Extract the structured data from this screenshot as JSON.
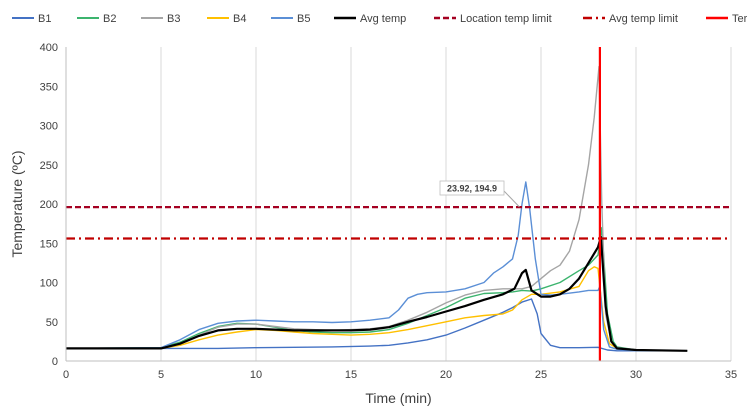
{
  "chart_data": {
    "type": "line",
    "xlabel": "Time (min)",
    "ylabel": "Temperature (ºC)",
    "xlim": [
      0,
      35
    ],
    "ylim": [
      0,
      400
    ],
    "xticks": [
      0,
      5,
      10,
      15,
      20,
      25,
      30,
      35
    ],
    "yticks": [
      0,
      50,
      100,
      150,
      200,
      250,
      300,
      350,
      400
    ],
    "grid": "vertical",
    "legend_position": "top",
    "series": [
      {
        "name": "B1",
        "color": "#4472c4",
        "style": "solid",
        "points": [
          [
            0,
            16
          ],
          [
            5,
            16
          ],
          [
            6,
            16
          ],
          [
            8,
            16
          ],
          [
            10,
            17
          ],
          [
            12,
            17.5
          ],
          [
            14,
            18
          ],
          [
            16,
            19
          ],
          [
            17,
            20
          ],
          [
            18,
            23
          ],
          [
            19,
            27
          ],
          [
            20,
            33
          ],
          [
            21,
            42
          ],
          [
            22,
            52
          ],
          [
            23,
            62
          ],
          [
            23.5,
            68
          ],
          [
            24,
            75
          ],
          [
            24.5,
            79
          ],
          [
            24.8,
            60
          ],
          [
            25,
            35
          ],
          [
            25.5,
            20
          ],
          [
            26,
            17
          ],
          [
            27,
            17
          ],
          [
            28,
            17.5
          ],
          [
            28.5,
            14
          ],
          [
            29,
            13
          ],
          [
            30,
            13
          ],
          [
            31,
            13
          ],
          [
            32.7,
            13
          ]
        ]
      },
      {
        "name": "B2",
        "color": "#3cb46e",
        "style": "solid",
        "points": [
          [
            0,
            16
          ],
          [
            5,
            17
          ],
          [
            6,
            24
          ],
          [
            7,
            35
          ],
          [
            8,
            44
          ],
          [
            9,
            48
          ],
          [
            10,
            47
          ],
          [
            11,
            43
          ],
          [
            12,
            39
          ],
          [
            13,
            37
          ],
          [
            14,
            36
          ],
          [
            15,
            36
          ],
          [
            16,
            37
          ],
          [
            17,
            40
          ],
          [
            18,
            48
          ],
          [
            19,
            58
          ],
          [
            20,
            68
          ],
          [
            21,
            80
          ],
          [
            22,
            86
          ],
          [
            23,
            87
          ],
          [
            23.5,
            88
          ],
          [
            24,
            90
          ],
          [
            24.5,
            89
          ],
          [
            25,
            92
          ],
          [
            26,
            100
          ],
          [
            27,
            115
          ],
          [
            27.5,
            122
          ],
          [
            28,
            135
          ],
          [
            28.2,
            170
          ],
          [
            28.5,
            60
          ],
          [
            28.8,
            25
          ],
          [
            29,
            18
          ],
          [
            30,
            14
          ],
          [
            31,
            13
          ],
          [
            32.7,
            13
          ]
        ]
      },
      {
        "name": "B3",
        "color": "#a5a5a5",
        "style": "solid",
        "points": [
          [
            0,
            16
          ],
          [
            5,
            16
          ],
          [
            6,
            22
          ],
          [
            7,
            33
          ],
          [
            8,
            43
          ],
          [
            9,
            47
          ],
          [
            10,
            47
          ],
          [
            11,
            44
          ],
          [
            12,
            41
          ],
          [
            13,
            40
          ],
          [
            14,
            39
          ],
          [
            15,
            40
          ],
          [
            16,
            41
          ],
          [
            17,
            44
          ],
          [
            18,
            52
          ],
          [
            19,
            62
          ],
          [
            20,
            74
          ],
          [
            21,
            84
          ],
          [
            22,
            90
          ],
          [
            23,
            92
          ],
          [
            24,
            92
          ],
          [
            24.5,
            95
          ],
          [
            25,
            105
          ],
          [
            25.5,
            115
          ],
          [
            26,
            122
          ],
          [
            26.5,
            140
          ],
          [
            27,
            180
          ],
          [
            27.5,
            250
          ],
          [
            27.8,
            310
          ],
          [
            28.05,
            375
          ],
          [
            28.2,
            200
          ],
          [
            28.4,
            60
          ],
          [
            28.7,
            25
          ],
          [
            29,
            17
          ],
          [
            30,
            14
          ],
          [
            32.7,
            13
          ]
        ]
      },
      {
        "name": "B4",
        "color": "#ffc000",
        "style": "solid",
        "points": [
          [
            0,
            16
          ],
          [
            5,
            16
          ],
          [
            6,
            20
          ],
          [
            7,
            27
          ],
          [
            8,
            33
          ],
          [
            9,
            37
          ],
          [
            10,
            40
          ],
          [
            11,
            39
          ],
          [
            12,
            37
          ],
          [
            13,
            35
          ],
          [
            14,
            34
          ],
          [
            15,
            33
          ],
          [
            16,
            34
          ],
          [
            17,
            36
          ],
          [
            18,
            40
          ],
          [
            19,
            45
          ],
          [
            20,
            50
          ],
          [
            21,
            55
          ],
          [
            22,
            58
          ],
          [
            23,
            60
          ],
          [
            23.5,
            65
          ],
          [
            24,
            78
          ],
          [
            24.5,
            85
          ],
          [
            25,
            85
          ],
          [
            26,
            88
          ],
          [
            27,
            95
          ],
          [
            27.5,
            115
          ],
          [
            27.8,
            120
          ],
          [
            28,
            118
          ],
          [
            28.3,
            50
          ],
          [
            28.6,
            22
          ],
          [
            29,
            16
          ],
          [
            30,
            14
          ],
          [
            32.7,
            13
          ]
        ]
      },
      {
        "name": "B5",
        "color": "#5b8fd6",
        "style": "solid",
        "points": [
          [
            0,
            16
          ],
          [
            5,
            17
          ],
          [
            6,
            27
          ],
          [
            7,
            40
          ],
          [
            8,
            48
          ],
          [
            9,
            51
          ],
          [
            10,
            52
          ],
          [
            11,
            51
          ],
          [
            12,
            50
          ],
          [
            13,
            50
          ],
          [
            14,
            49
          ],
          [
            15,
            50
          ],
          [
            16,
            52
          ],
          [
            17,
            55
          ],
          [
            17.5,
            65
          ],
          [
            18,
            80
          ],
          [
            18.5,
            85
          ],
          [
            19,
            87
          ],
          [
            20,
            88
          ],
          [
            21,
            92
          ],
          [
            22,
            100
          ],
          [
            22.5,
            112
          ],
          [
            23,
            120
          ],
          [
            23.5,
            130
          ],
          [
            23.8,
            160
          ],
          [
            24,
            200
          ],
          [
            24.2,
            228
          ],
          [
            24.4,
            195
          ],
          [
            24.7,
            130
          ],
          [
            25,
            85
          ],
          [
            25.5,
            84
          ],
          [
            26,
            85
          ],
          [
            27,
            88
          ],
          [
            27.5,
            90
          ],
          [
            28,
            90
          ],
          [
            28.1,
            95
          ],
          [
            28.3,
            40
          ],
          [
            28.6,
            18
          ],
          [
            29,
            15
          ],
          [
            30,
            13
          ],
          [
            32.7,
            13
          ]
        ]
      },
      {
        "name": "Avg temp",
        "color": "#000000",
        "style": "solid",
        "points": [
          [
            0,
            16
          ],
          [
            5,
            16
          ],
          [
            6,
            22
          ],
          [
            7,
            32
          ],
          [
            8,
            39
          ],
          [
            9,
            41
          ],
          [
            10,
            41
          ],
          [
            11,
            40
          ],
          [
            12,
            39
          ],
          [
            13,
            39
          ],
          [
            14,
            39
          ],
          [
            15,
            39
          ],
          [
            16,
            40
          ],
          [
            17,
            43
          ],
          [
            18,
            50
          ],
          [
            19,
            56
          ],
          [
            20,
            63
          ],
          [
            21,
            70
          ],
          [
            22,
            78
          ],
          [
            23,
            85
          ],
          [
            23.6,
            92
          ],
          [
            24,
            112
          ],
          [
            24.2,
            116
          ],
          [
            24.5,
            90
          ],
          [
            25,
            82
          ],
          [
            25.5,
            82
          ],
          [
            26,
            85
          ],
          [
            26.5,
            92
          ],
          [
            27,
            105
          ],
          [
            27.5,
            125
          ],
          [
            28,
            145
          ],
          [
            28.15,
            158
          ],
          [
            28.4,
            70
          ],
          [
            28.7,
            25
          ],
          [
            29,
            16
          ],
          [
            30,
            14
          ],
          [
            32.7,
            13
          ]
        ]
      },
      {
        "name": "Location temp limit",
        "color": "#a50021",
        "style": "dash",
        "points": [
          [
            0,
            196
          ],
          [
            35,
            196
          ]
        ]
      },
      {
        "name": "Avg temp limit",
        "color": "#c00000",
        "style": "dashdot",
        "points": [
          [
            0,
            156
          ],
          [
            35,
            156
          ]
        ]
      },
      {
        "name": "Terminated time",
        "color": "#ff0000",
        "style": "solid",
        "points": [
          [
            28.1,
            0
          ],
          [
            28.1,
            400
          ]
        ]
      }
    ],
    "annotations": [
      {
        "text": "23.92, 194.9",
        "x": 23.92,
        "y": 194.9
      }
    ]
  }
}
